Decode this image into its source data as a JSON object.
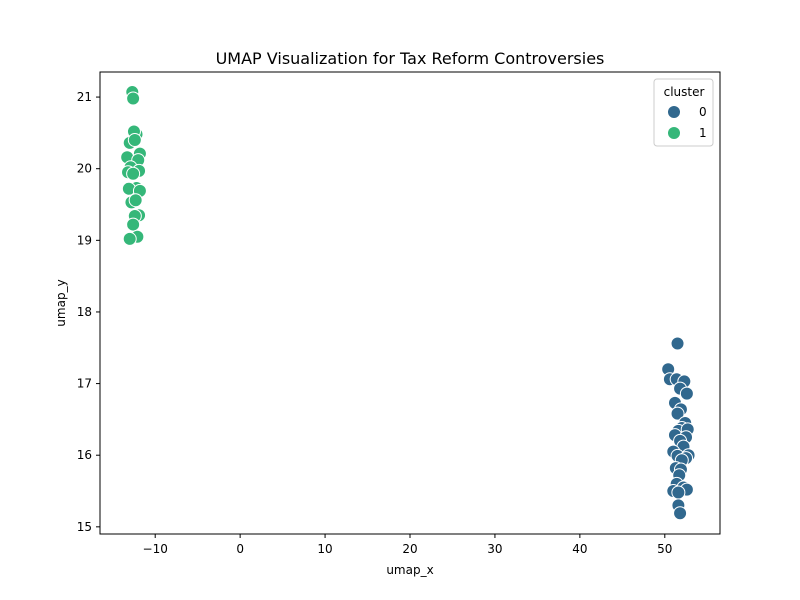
{
  "chart_data": {
    "type": "scatter",
    "title": "UMAP Visualization for Tax Reform Controversies",
    "xlabel": "umap_x",
    "ylabel": "umap_y",
    "xlim": [
      -16.5,
      56.5
    ],
    "ylim": [
      14.9,
      21.35
    ],
    "xticks": [
      -10,
      0,
      10,
      20,
      30,
      40,
      50
    ],
    "yticks": [
      15,
      16,
      17,
      18,
      19,
      20,
      21
    ],
    "grid": false,
    "legend": {
      "title": "cluster",
      "placement": "top-right"
    },
    "series": [
      {
        "name": "0",
        "color": "#31688e",
        "points": [
          [
            51.5,
            17.56
          ],
          [
            50.4,
            17.2
          ],
          [
            50.6,
            17.06
          ],
          [
            51.4,
            17.06
          ],
          [
            52.3,
            17.03
          ],
          [
            51.8,
            16.93
          ],
          [
            52.6,
            16.86
          ],
          [
            51.2,
            16.73
          ],
          [
            51.9,
            16.64
          ],
          [
            51.5,
            16.58
          ],
          [
            52.4,
            16.45
          ],
          [
            52.0,
            16.38
          ],
          [
            51.6,
            16.34
          ],
          [
            52.7,
            16.36
          ],
          [
            51.2,
            16.28
          ],
          [
            52.5,
            16.25
          ],
          [
            51.8,
            16.2
          ],
          [
            52.2,
            16.12
          ],
          [
            51.0,
            16.05
          ],
          [
            51.5,
            15.99
          ],
          [
            52.8,
            16.0
          ],
          [
            52.5,
            15.96
          ],
          [
            52.0,
            15.93
          ],
          [
            51.3,
            15.82
          ],
          [
            51.9,
            15.8
          ],
          [
            51.7,
            15.72
          ],
          [
            51.4,
            15.6
          ],
          [
            52.2,
            15.55
          ],
          [
            52.6,
            15.52
          ],
          [
            51.0,
            15.5
          ],
          [
            51.6,
            15.48
          ],
          [
            51.6,
            15.3
          ],
          [
            51.8,
            15.19
          ]
        ]
      },
      {
        "name": "1",
        "color": "#35b779",
        "points": [
          [
            -12.7,
            21.07
          ],
          [
            -12.6,
            20.98
          ],
          [
            -12.2,
            20.48
          ],
          [
            -12.5,
            20.52
          ],
          [
            -13.0,
            20.36
          ],
          [
            -12.4,
            20.4
          ],
          [
            -11.8,
            20.21
          ],
          [
            -13.3,
            20.16
          ],
          [
            -12.0,
            20.12
          ],
          [
            -12.9,
            20.02
          ],
          [
            -13.2,
            19.95
          ],
          [
            -11.9,
            19.97
          ],
          [
            -12.6,
            19.93
          ],
          [
            -12.2,
            19.73
          ],
          [
            -13.1,
            19.72
          ],
          [
            -11.8,
            19.69
          ],
          [
            -12.8,
            19.53
          ],
          [
            -12.3,
            19.56
          ],
          [
            -11.9,
            19.35
          ],
          [
            -12.4,
            19.34
          ],
          [
            -12.6,
            19.22
          ],
          [
            -12.1,
            19.05
          ],
          [
            -13.0,
            19.02
          ]
        ]
      }
    ]
  }
}
